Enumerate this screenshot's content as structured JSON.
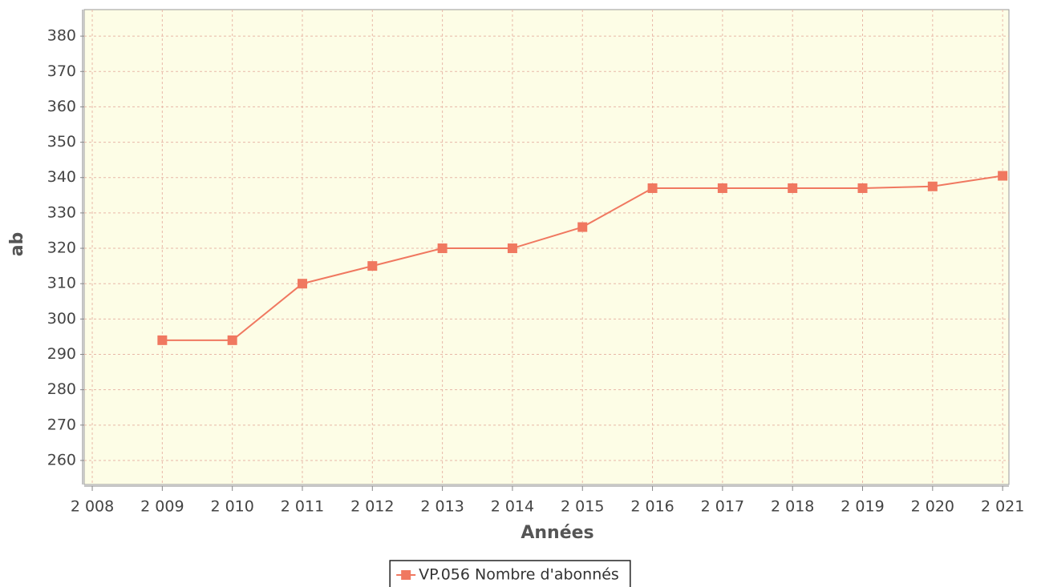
{
  "chart_data": {
    "type": "line",
    "x_label": "Années",
    "y_label": "ab",
    "x": [
      2009,
      2010,
      2011,
      2012,
      2013,
      2014,
      2015,
      2016,
      2017,
      2018,
      2019,
      2020,
      2021
    ],
    "series": [
      {
        "name": "VP.056 Nombre d'abonnés",
        "color": "#f07860",
        "values": [
          294,
          294,
          310,
          315,
          320,
          320,
          326,
          337,
          337,
          337,
          337,
          337.5,
          340.5
        ]
      }
    ],
    "xlim": [
      2007.885,
      2021.09
    ],
    "xticks": [
      {
        "value": 2008,
        "label": "2 008"
      },
      {
        "value": 2009,
        "label": "2 009"
      },
      {
        "value": 2010,
        "label": "2 010"
      },
      {
        "value": 2011,
        "label": "2 011"
      },
      {
        "value": 2012,
        "label": "2 012"
      },
      {
        "value": 2013,
        "label": "2 013"
      },
      {
        "value": 2014,
        "label": "2 014"
      },
      {
        "value": 2015,
        "label": "2 015"
      },
      {
        "value": 2016,
        "label": "2 016"
      },
      {
        "value": 2017,
        "label": "2 017"
      },
      {
        "value": 2018,
        "label": "2 018"
      },
      {
        "value": 2019,
        "label": "2 019"
      },
      {
        "value": 2020,
        "label": "2 020"
      },
      {
        "value": 2021,
        "label": "2 021"
      }
    ],
    "ylim": [
      253.2,
      387.5
    ],
    "yticks": [
      260,
      270,
      280,
      290,
      300,
      310,
      320,
      330,
      340,
      350,
      360,
      370,
      380
    ],
    "grid": true,
    "legend": "bottom"
  }
}
